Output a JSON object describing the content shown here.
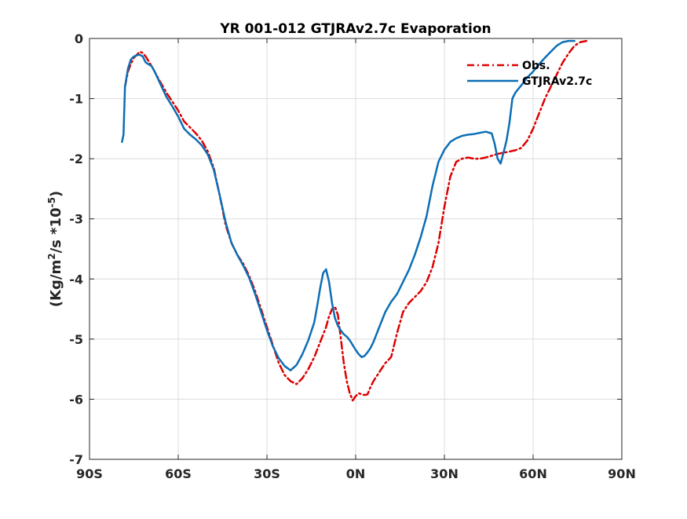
{
  "chart_data": {
    "type": "line",
    "title": "YR 001-012 GTJRAv2.7c Evaporation",
    "xlabel": "",
    "ylabel": {
      "base": "(Kg/m",
      "sup1": "2",
      "mid": "/s *10",
      "sup2": "-5",
      "end": ")"
    },
    "xlim": [
      -90,
      90
    ],
    "ylim": [
      -7,
      0
    ],
    "xticks": [
      -90,
      -60,
      -30,
      0,
      30,
      60,
      90
    ],
    "xtick_labels": [
      "90S",
      "60S",
      "30S",
      "0N",
      "30N",
      "60N",
      "90N"
    ],
    "yticks": [
      0,
      -1,
      -2,
      -3,
      -4,
      -5,
      -6,
      -7
    ],
    "ytick_labels": [
      "0",
      "-1",
      "-2",
      "-3",
      "-4",
      "-5",
      "-6",
      "-7"
    ],
    "grid": true,
    "legend_position": "top-right",
    "series": [
      {
        "name": "Obs.",
        "color": "#dd0000",
        "style": "dash-dot",
        "points": [
          [
            -78,
            -0.8
          ],
          [
            -77,
            -0.55
          ],
          [
            -76,
            -0.42
          ],
          [
            -75,
            -0.32
          ],
          [
            -74,
            -0.27
          ],
          [
            -73,
            -0.22
          ],
          [
            -72,
            -0.24
          ],
          [
            -71,
            -0.3
          ],
          [
            -70,
            -0.38
          ],
          [
            -69,
            -0.46
          ],
          [
            -68,
            -0.55
          ],
          [
            -66,
            -0.73
          ],
          [
            -64,
            -0.9
          ],
          [
            -62,
            -1.05
          ],
          [
            -60,
            -1.2
          ],
          [
            -58,
            -1.38
          ],
          [
            -56,
            -1.48
          ],
          [
            -54,
            -1.58
          ],
          [
            -52,
            -1.7
          ],
          [
            -50,
            -1.88
          ],
          [
            -48,
            -2.15
          ],
          [
            -46,
            -2.6
          ],
          [
            -44,
            -3.1
          ],
          [
            -42,
            -3.4
          ],
          [
            -40,
            -3.6
          ],
          [
            -38,
            -3.75
          ],
          [
            -36,
            -3.95
          ],
          [
            -34,
            -4.2
          ],
          [
            -32,
            -4.5
          ],
          [
            -30,
            -4.8
          ],
          [
            -28,
            -5.1
          ],
          [
            -26,
            -5.4
          ],
          [
            -24,
            -5.6
          ],
          [
            -22,
            -5.7
          ],
          [
            -20,
            -5.75
          ],
          [
            -18,
            -5.65
          ],
          [
            -16,
            -5.5
          ],
          [
            -14,
            -5.3
          ],
          [
            -12,
            -5.05
          ],
          [
            -10,
            -4.8
          ],
          [
            -9,
            -4.62
          ],
          [
            -8,
            -4.5
          ],
          [
            -7,
            -4.46
          ],
          [
            -6,
            -4.6
          ],
          [
            -5,
            -5.0
          ],
          [
            -4,
            -5.4
          ],
          [
            -3,
            -5.7
          ],
          [
            -2,
            -5.9
          ],
          [
            -1,
            -6.02
          ],
          [
            0,
            -5.95
          ],
          [
            1,
            -5.9
          ],
          [
            2,
            -5.92
          ],
          [
            3,
            -5.93
          ],
          [
            4,
            -5.92
          ],
          [
            5,
            -5.8
          ],
          [
            6,
            -5.7
          ],
          [
            8,
            -5.55
          ],
          [
            10,
            -5.4
          ],
          [
            12,
            -5.3
          ],
          [
            14,
            -4.9
          ],
          [
            16,
            -4.55
          ],
          [
            18,
            -4.4
          ],
          [
            20,
            -4.3
          ],
          [
            22,
            -4.2
          ],
          [
            24,
            -4.05
          ],
          [
            26,
            -3.8
          ],
          [
            28,
            -3.4
          ],
          [
            30,
            -2.8
          ],
          [
            32,
            -2.3
          ],
          [
            34,
            -2.05
          ],
          [
            36,
            -2.0
          ],
          [
            38,
            -1.98
          ],
          [
            40,
            -2.0
          ],
          [
            42,
            -2.0
          ],
          [
            44,
            -1.98
          ],
          [
            46,
            -1.95
          ],
          [
            48,
            -1.92
          ],
          [
            50,
            -1.9
          ],
          [
            52,
            -1.88
          ],
          [
            54,
            -1.86
          ],
          [
            56,
            -1.82
          ],
          [
            58,
            -1.7
          ],
          [
            60,
            -1.5
          ],
          [
            62,
            -1.25
          ],
          [
            64,
            -1.0
          ],
          [
            66,
            -0.8
          ],
          [
            68,
            -0.6
          ],
          [
            70,
            -0.4
          ],
          [
            72,
            -0.25
          ],
          [
            74,
            -0.12
          ],
          [
            76,
            -0.06
          ],
          [
            78,
            -0.04
          ]
        ]
      },
      {
        "name": "GTJRAv2.7c",
        "color": "#0c6eb5",
        "style": "solid",
        "points": [
          [
            -79,
            -1.72
          ],
          [
            -78.5,
            -1.6
          ],
          [
            -78,
            -0.8
          ],
          [
            -77,
            -0.5
          ],
          [
            -76,
            -0.35
          ],
          [
            -75,
            -0.3
          ],
          [
            -74,
            -0.28
          ],
          [
            -73,
            -0.27
          ],
          [
            -72,
            -0.3
          ],
          [
            -71,
            -0.4
          ],
          [
            -70,
            -0.43
          ],
          [
            -69,
            -0.46
          ],
          [
            -68,
            -0.55
          ],
          [
            -66,
            -0.76
          ],
          [
            -64,
            -0.97
          ],
          [
            -62,
            -1.13
          ],
          [
            -60,
            -1.3
          ],
          [
            -58,
            -1.5
          ],
          [
            -56,
            -1.6
          ],
          [
            -54,
            -1.68
          ],
          [
            -52,
            -1.78
          ],
          [
            -50,
            -1.93
          ],
          [
            -48,
            -2.18
          ],
          [
            -46,
            -2.6
          ],
          [
            -44,
            -3.05
          ],
          [
            -42,
            -3.4
          ],
          [
            -40,
            -3.6
          ],
          [
            -38,
            -3.78
          ],
          [
            -36,
            -3.98
          ],
          [
            -34,
            -4.25
          ],
          [
            -32,
            -4.55
          ],
          [
            -30,
            -4.85
          ],
          [
            -28,
            -5.12
          ],
          [
            -26,
            -5.32
          ],
          [
            -24,
            -5.45
          ],
          [
            -22,
            -5.52
          ],
          [
            -20,
            -5.43
          ],
          [
            -18,
            -5.25
          ],
          [
            -16,
            -5.02
          ],
          [
            -14,
            -4.72
          ],
          [
            -13,
            -4.45
          ],
          [
            -12,
            -4.15
          ],
          [
            -11,
            -3.9
          ],
          [
            -10,
            -3.84
          ],
          [
            -9,
            -4.05
          ],
          [
            -8,
            -4.4
          ],
          [
            -7,
            -4.65
          ],
          [
            -6,
            -4.78
          ],
          [
            -5,
            -4.86
          ],
          [
            -4,
            -4.92
          ],
          [
            -3,
            -4.96
          ],
          [
            -2,
            -5.02
          ],
          [
            -1,
            -5.1
          ],
          [
            0,
            -5.18
          ],
          [
            1,
            -5.25
          ],
          [
            2,
            -5.3
          ],
          [
            3,
            -5.28
          ],
          [
            4,
            -5.22
          ],
          [
            5,
            -5.15
          ],
          [
            6,
            -5.05
          ],
          [
            8,
            -4.8
          ],
          [
            10,
            -4.55
          ],
          [
            12,
            -4.38
          ],
          [
            14,
            -4.25
          ],
          [
            16,
            -4.05
          ],
          [
            18,
            -3.85
          ],
          [
            20,
            -3.6
          ],
          [
            22,
            -3.3
          ],
          [
            24,
            -2.95
          ],
          [
            26,
            -2.45
          ],
          [
            28,
            -2.05
          ],
          [
            30,
            -1.85
          ],
          [
            32,
            -1.72
          ],
          [
            34,
            -1.66
          ],
          [
            36,
            -1.62
          ],
          [
            38,
            -1.6
          ],
          [
            40,
            -1.59
          ],
          [
            42,
            -1.57
          ],
          [
            44,
            -1.55
          ],
          [
            46,
            -1.58
          ],
          [
            47,
            -1.75
          ],
          [
            48,
            -2.0
          ],
          [
            49,
            -2.08
          ],
          [
            50,
            -1.9
          ],
          [
            51,
            -1.7
          ],
          [
            52,
            -1.4
          ],
          [
            53,
            -1.0
          ],
          [
            54,
            -0.9
          ],
          [
            56,
            -0.78
          ],
          [
            58,
            -0.65
          ],
          [
            60,
            -0.55
          ],
          [
            62,
            -0.43
          ],
          [
            64,
            -0.32
          ],
          [
            66,
            -0.22
          ],
          [
            68,
            -0.12
          ],
          [
            70,
            -0.06
          ],
          [
            72,
            -0.04
          ],
          [
            74,
            -0.04
          ]
        ]
      }
    ]
  }
}
